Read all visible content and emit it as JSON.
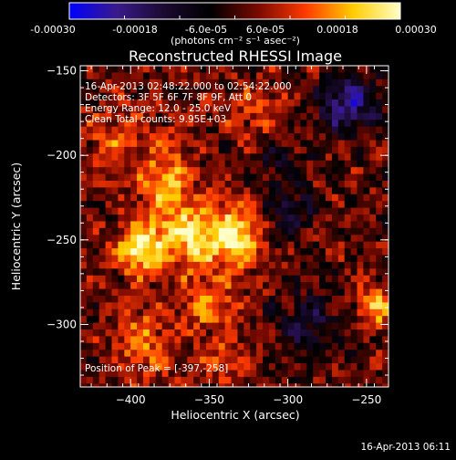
{
  "colorbar": {
    "ticks": [
      "-0.00030",
      "-0.00018",
      "-6.0e-05",
      "6.0e-05",
      "0.00018",
      "0.00030"
    ],
    "unit_label": "(photons cm⁻² s⁻¹ asec⁻²)"
  },
  "plot": {
    "title": "Reconstructed RHESSI Image",
    "info_lines": [
      "16-Apr-2013 02:48:22.000 to 02:54:22.000",
      "Detectors: 3F 5F 6F 7F 8F 9F, Att 0",
      "Energy Range: 12.0 - 25.0 keV",
      "Clean     Total counts: 9.95E+03"
    ],
    "peak_label": "Position of Peak = [-397,-258]"
  },
  "footer": {
    "timestamp": "16-Apr-2013 06:11"
  },
  "chart_data": {
    "type": "heatmap",
    "title": "Reconstructed RHESSI Image",
    "xlabel": "Heliocentric X (arcsec)",
    "ylabel": "Heliocentric Y (arcsec)",
    "xlim": [
      -432,
      -236
    ],
    "ylim": [
      -337,
      -147
    ],
    "x_ticks": [
      {
        "value": -400,
        "label": "−400"
      },
      {
        "value": -350,
        "label": "−350"
      },
      {
        "value": -300,
        "label": "−300"
      },
      {
        "value": -250,
        "label": "−250"
      }
    ],
    "y_ticks": [
      {
        "value": -150,
        "label": "−150"
      },
      {
        "value": -200,
        "label": "−200"
      },
      {
        "value": -250,
        "label": "−250"
      },
      {
        "value": -300,
        "label": "−300"
      }
    ],
    "colorscale": {
      "min": -0.0003,
      "max": 0.0003,
      "colors": [
        "#0000ff",
        "#3a1a8a",
        "#1a0a30",
        "#000000",
        "#7a0a00",
        "#ff3a00",
        "#ffcc00",
        "#ffffc8"
      ]
    },
    "peak_position": [
      -397,
      -258
    ],
    "hotspots": [
      {
        "x": -357,
        "y": -248,
        "amp": 0.00022,
        "sx": 18,
        "sy": 14
      },
      {
        "x": -395,
        "y": -255,
        "amp": 0.00026,
        "sx": 10,
        "sy": 10
      },
      {
        "x": -378,
        "y": -215,
        "amp": 0.00016,
        "sx": 12,
        "sy": 18
      },
      {
        "x": -330,
        "y": -248,
        "amp": 0.00018,
        "sx": 10,
        "sy": 12
      },
      {
        "x": -350,
        "y": -290,
        "amp": 0.00012,
        "sx": 14,
        "sy": 12
      },
      {
        "x": -410,
        "y": -190,
        "amp": 0.0001,
        "sx": 12,
        "sy": 15
      },
      {
        "x": -392,
        "y": -310,
        "amp": 0.00012,
        "sx": 12,
        "sy": 16
      },
      {
        "x": -245,
        "y": -290,
        "amp": 0.00017,
        "sx": 8,
        "sy": 10
      },
      {
        "x": -320,
        "y": -175,
        "amp": 8e-05,
        "sx": 15,
        "sy": 12
      },
      {
        "x": -340,
        "y": -322,
        "amp": 0.0001,
        "sx": 10,
        "sy": 8
      },
      {
        "x": -262,
        "y": -170,
        "amp": -0.00022,
        "sx": 14,
        "sy": 12
      },
      {
        "x": -300,
        "y": -232,
        "amp": -0.00012,
        "sx": 12,
        "sy": 12
      },
      {
        "x": -285,
        "y": -300,
        "amp": -0.00012,
        "sx": 15,
        "sy": 14
      },
      {
        "x": -305,
        "y": -200,
        "amp": -8e-05,
        "sx": 10,
        "sy": 10
      }
    ]
  }
}
